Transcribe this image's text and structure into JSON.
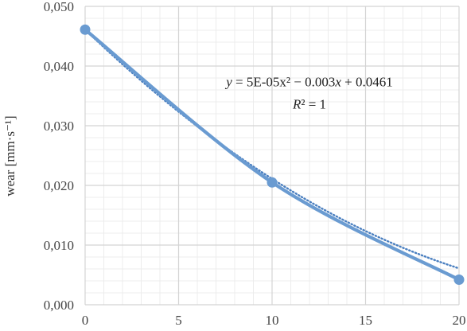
{
  "chart_data": {
    "type": "scatter",
    "xlabel": "",
    "ylabel": "wear [mm·s⁻¹]",
    "xlim": [
      0,
      20
    ],
    "ylim": [
      0,
      0.05
    ],
    "x_ticks": [
      0,
      5,
      10,
      15,
      20
    ],
    "x_tick_labels": [
      "0",
      "5",
      "10",
      "15",
      "20"
    ],
    "y_ticks": [
      0,
      0.01,
      0.02,
      0.03,
      0.04,
      0.05
    ],
    "y_tick_labels": [
      "0,000",
      "0,010",
      "0,020",
      "0,030",
      "0,040",
      "0,050"
    ],
    "grid": true,
    "minor_grid": true,
    "series": [
      {
        "x": [
          0,
          10,
          20
        ],
        "y": [
          0.0461,
          0.0205,
          0.0042
        ],
        "color": "#6a9bd1",
        "line_style": "smooth",
        "marker": "circle"
      }
    ],
    "trendline": {
      "type": "polynomial",
      "order": 2,
      "coefficients": [
        5e-05,
        -0.003,
        0.0461
      ],
      "style": "dotted",
      "color": "#4a7fc0"
    },
    "annotations": [
      {
        "line1_parts": [
          {
            "text": "y",
            "italic": true
          },
          {
            "text": " = 5E-05x² − 0.003",
            "italic": false
          },
          {
            "text": "x",
            "italic": true
          },
          {
            "text": " + 0.0461",
            "italic": false
          }
        ],
        "line2_parts": [
          {
            "text": "R",
            "italic": true
          },
          {
            "text": "² = 1",
            "italic": false
          }
        ],
        "anchor_x": 12,
        "anchor_y": 0.035
      }
    ]
  }
}
